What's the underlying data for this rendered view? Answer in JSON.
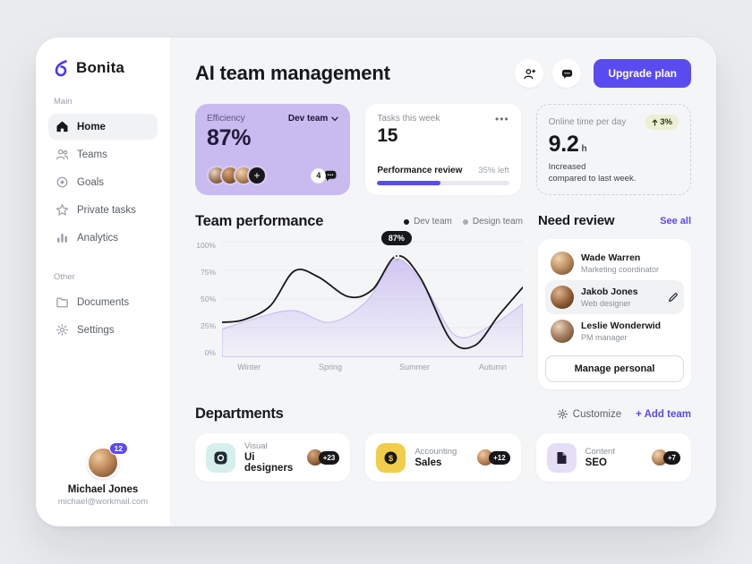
{
  "app": {
    "name": "Bonita"
  },
  "colors": {
    "accent": "#5a4bf0",
    "purple_card": "#c9bbf0",
    "yellow": "#f2cd4b",
    "teal": "#d6efec",
    "lavender": "#e5def7",
    "dark": "#17181a"
  },
  "sidebar": {
    "main_label": "Main",
    "items": [
      {
        "label": "Home",
        "active": true
      },
      {
        "label": "Teams"
      },
      {
        "label": "Goals"
      },
      {
        "label": "Private tasks"
      },
      {
        "label": "Analytics"
      }
    ],
    "other_label": "Other",
    "other_items": [
      {
        "label": "Documents"
      },
      {
        "label": "Settings"
      }
    ],
    "user": {
      "name": "Michael Jones",
      "email": "michael@workmail.com",
      "badge": "12"
    }
  },
  "header": {
    "title": "AI team management",
    "upgrade_label": "Upgrade plan"
  },
  "stats": {
    "efficiency": {
      "label": "Efficiency",
      "team": "Dev team",
      "value": "87%",
      "chat_count": "4"
    },
    "tasks": {
      "label": "Tasks this week",
      "value": "15",
      "menu": "•••",
      "task": "Performance review",
      "left": "35% left",
      "progress_pct": 48
    },
    "online": {
      "label": "Online time per day",
      "value": "9.2",
      "unit": "h",
      "delta": "3%",
      "note_line1": "Increased",
      "note_line2": "compared to last week."
    }
  },
  "performance": {
    "title": "Team performance",
    "legend": [
      {
        "label": "Dev team"
      },
      {
        "label": "Design team"
      }
    ]
  },
  "chart_data": {
    "type": "line",
    "x_ticks": [
      "Winter",
      "Spring",
      "Summer",
      "Autumn"
    ],
    "y_ticks": [
      "100%",
      "75%",
      "50%",
      "25%",
      "0%"
    ],
    "ylim": [
      0,
      100
    ],
    "legend_position": "top-right",
    "series": [
      {
        "name": "Dev team",
        "color": "#17181a",
        "values": [
          [
            0,
            30
          ],
          [
            0.07,
            32
          ],
          [
            0.16,
            44
          ],
          [
            0.24,
            74
          ],
          [
            0.32,
            69
          ],
          [
            0.42,
            52
          ],
          [
            0.5,
            58
          ],
          [
            0.58,
            87
          ],
          [
            0.66,
            68
          ],
          [
            0.76,
            15
          ],
          [
            0.84,
            10
          ],
          [
            0.92,
            36
          ],
          [
            1,
            60
          ]
        ]
      },
      {
        "name": "Design team",
        "color": "#c3b2f2",
        "area": true,
        "values": [
          [
            0,
            24
          ],
          [
            0.12,
            34
          ],
          [
            0.24,
            40
          ],
          [
            0.36,
            30
          ],
          [
            0.48,
            48
          ],
          [
            0.58,
            84
          ],
          [
            0.68,
            58
          ],
          [
            0.78,
            18
          ],
          [
            0.9,
            28
          ],
          [
            1,
            46
          ]
        ]
      }
    ],
    "annotation": {
      "label": "87%",
      "x": 0.58,
      "y": 87
    }
  },
  "review": {
    "title": "Need review",
    "see_all": "See all",
    "people": [
      {
        "name": "Wade Warren",
        "role": "Marketing coordinator"
      },
      {
        "name": "Jakob Jones",
        "role": "Web designer",
        "highlight": true
      },
      {
        "name": "Leslie Wonderwid",
        "role": "PM manager"
      }
    ],
    "button": "Manage personal"
  },
  "departments": {
    "title": "Departments",
    "customize": "Customize",
    "add_team": "+ Add team",
    "cards": [
      {
        "category": "Visual",
        "name": "Ui designers",
        "count": "+23"
      },
      {
        "category": "Accounting",
        "name": "Sales",
        "count": "+12"
      },
      {
        "category": "Content",
        "name": "SEO",
        "count": "+7"
      }
    ]
  }
}
